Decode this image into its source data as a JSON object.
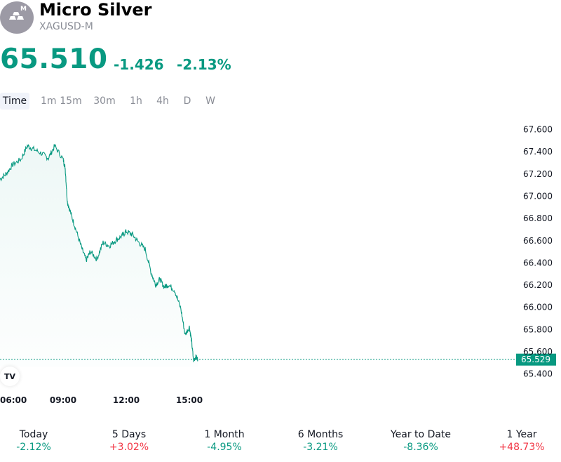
{
  "header": {
    "title": "Micro Silver",
    "symbol": "XAGUSD-M",
    "logo_letter": "M",
    "price": "65.510",
    "change": "-1.426",
    "change_pct": "-2.13%"
  },
  "tabs": [
    {
      "label": "Time",
      "active": true
    },
    {
      "label": "1m"
    },
    {
      "label": "15m"
    },
    {
      "label": "30m"
    },
    {
      "label": "1h"
    },
    {
      "label": "4h"
    },
    {
      "label": "D"
    },
    {
      "label": "W"
    }
  ],
  "tv_badge": "TV",
  "colors": {
    "up": "#089981",
    "down": "#f23645",
    "line": "#089981",
    "logo_bg": "#9c9aa5"
  },
  "performance": [
    {
      "label": "Today",
      "value": "-2.12%"
    },
    {
      "label": "5 Days",
      "value": "+3.02%"
    },
    {
      "label": "1 Month",
      "value": "-4.95%"
    },
    {
      "label": "6 Months",
      "value": "-3.21%"
    },
    {
      "label": "Year to Date",
      "value": "-8.36%"
    },
    {
      "label": "1 Year",
      "value": "+48.73%"
    }
  ],
  "chart_data": {
    "type": "area",
    "x_ticks": [
      "06:00",
      "09:00",
      "12:00",
      "15:00"
    ],
    "y_ticks": [
      "67.600",
      "67.400",
      "67.200",
      "67.000",
      "66.800",
      "66.600",
      "66.400",
      "66.200",
      "66.000",
      "65.800",
      "65.600",
      "65.400"
    ],
    "ylim": [
      65.35,
      67.67
    ],
    "last_price_label": "65.529",
    "last_price": 65.529,
    "x_hours": [
      6.0,
      6.3,
      6.6,
      7.0,
      7.3,
      7.6,
      8.0,
      8.3,
      8.6,
      9.0,
      9.1,
      9.2,
      9.4,
      9.6,
      9.9,
      10.1,
      10.3,
      10.6,
      10.9,
      11.2,
      11.5,
      11.8,
      12.0,
      12.3,
      12.6,
      12.9,
      13.2,
      13.4,
      13.6,
      13.8,
      14.0,
      14.3,
      14.6,
      14.8,
      15.0,
      15.1,
      15.2,
      15.3,
      15.4
    ],
    "values": [
      67.15,
      67.2,
      67.28,
      67.33,
      67.45,
      67.42,
      67.38,
      67.34,
      67.45,
      67.33,
      67.25,
      66.95,
      66.82,
      66.7,
      66.52,
      66.42,
      66.5,
      66.43,
      66.58,
      66.55,
      66.6,
      66.64,
      66.68,
      66.65,
      66.58,
      66.52,
      66.3,
      66.2,
      66.25,
      66.18,
      66.2,
      66.15,
      65.98,
      65.75,
      65.82,
      65.7,
      65.52,
      65.55,
      65.53
    ]
  }
}
